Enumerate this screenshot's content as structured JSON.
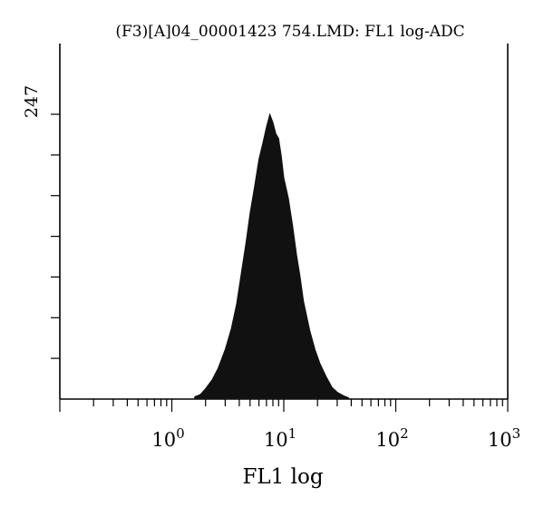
{
  "chart_data": {
    "type": "area",
    "title": "(F3)[A]04_00001423 754.LMD: FL1 log-ADC",
    "xlabel": "FL1 log",
    "ylabel": "",
    "x_scale": "log",
    "xlim": [
      0.1,
      1000
    ],
    "ylim": [
      0,
      247
    ],
    "y_max_label": "247",
    "x_tick_labels": [
      {
        "value": 1,
        "base": "10",
        "exp": "0"
      },
      {
        "value": 10,
        "base": "10",
        "exp": "1"
      },
      {
        "value": 100,
        "base": "10",
        "exp": "2"
      },
      {
        "value": 1000,
        "base": "10",
        "exp": "3"
      }
    ],
    "fill_color": "#111111",
    "grid": false,
    "series": [
      {
        "x": [
          1.6,
          1.8,
          2.0,
          2.3,
          2.6,
          3.0,
          3.4,
          3.8,
          4.2,
          4.6,
          5.0,
          5.5,
          6.0,
          6.5,
          7.0,
          7.5,
          8.0,
          8.5,
          9.0,
          9.5,
          10,
          11,
          12,
          13,
          14,
          15,
          17,
          19,
          21,
          24,
          27,
          30,
          34,
          38
        ],
        "values": [
          2,
          4,
          9,
          17,
          27,
          43,
          61,
          83,
          111,
          136,
          161,
          185,
          208,
          222,
          236,
          247,
          240,
          230,
          226,
          211,
          192,
          174,
          150,
          125,
          106,
          85,
          60,
          43,
          31,
          19,
          10,
          6,
          3,
          1
        ]
      }
    ]
  }
}
